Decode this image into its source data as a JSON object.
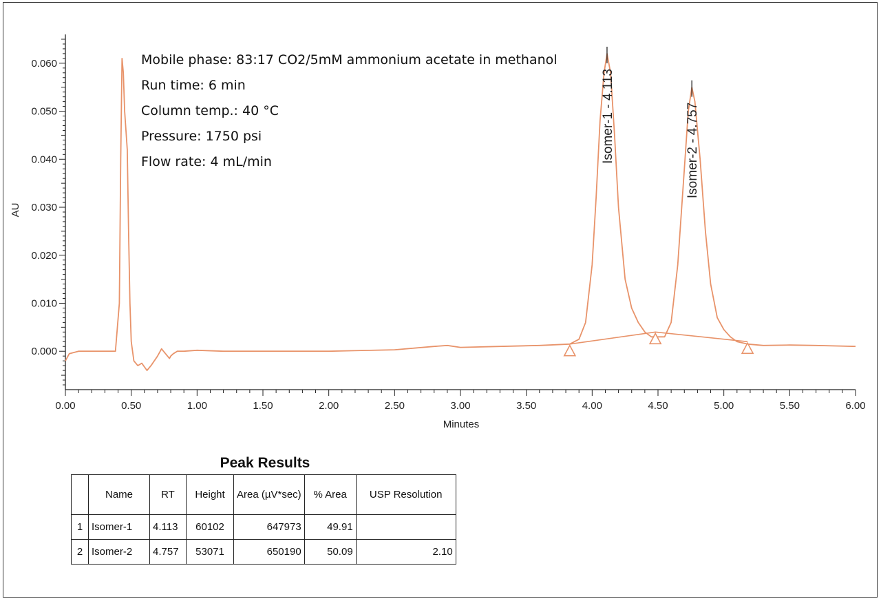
{
  "conditions": [
    "Mobile phase:  83:17 CO2/5mM ammonium acetate in methanol",
    "Run time: 6 min",
    "Column temp.: 40 °C",
    "Pressure: 1750 psi",
    "Flow rate: 4 mL/min"
  ],
  "chart_data": {
    "type": "line",
    "title": "",
    "xlabel": "Minutes",
    "ylabel": "AU",
    "xlim": [
      0.0,
      6.0
    ],
    "ylim": [
      -0.008,
      0.066
    ],
    "x_ticks": [
      "0.00",
      "0.50",
      "1.00",
      "1.50",
      "2.00",
      "2.50",
      "3.00",
      "3.50",
      "4.00",
      "4.50",
      "5.00",
      "5.50",
      "6.00"
    ],
    "y_ticks": [
      "0.000",
      "0.010",
      "0.020",
      "0.030",
      "0.040",
      "0.050",
      "0.060"
    ],
    "grid": false,
    "line_color": "#e8936a",
    "series": [
      {
        "x": [
          0.0,
          0.03,
          0.1,
          0.2,
          0.3,
          0.38,
          0.41,
          0.42,
          0.43,
          0.44,
          0.45,
          0.46,
          0.47,
          0.48,
          0.49,
          0.5,
          0.52,
          0.55,
          0.58,
          0.62,
          0.65,
          0.7,
          0.73,
          0.76,
          0.79,
          0.8,
          0.82,
          0.85,
          0.9,
          1.0,
          1.2,
          1.5,
          2.0,
          2.5,
          2.8,
          2.9,
          3.0,
          3.3,
          3.6,
          3.83,
          3.9,
          3.95,
          4.0,
          4.03,
          4.06,
          4.09,
          4.113,
          4.14,
          4.17,
          4.2,
          4.25,
          4.3,
          4.35,
          4.4,
          4.45,
          4.5,
          4.55,
          4.6,
          4.65,
          4.7,
          4.73,
          4.757,
          4.78,
          4.82,
          4.86,
          4.9,
          4.95,
          5.0,
          5.05,
          5.1,
          5.18,
          5.3,
          5.5,
          5.7,
          5.85,
          6.0
        ],
        "y": [
          -0.002,
          -0.0005,
          0.0,
          0.0,
          0.0,
          0.0,
          0.01,
          0.04,
          0.061,
          0.058,
          0.05,
          0.046,
          0.042,
          0.025,
          0.01,
          0.002,
          -0.002,
          -0.003,
          -0.0025,
          -0.004,
          -0.003,
          -0.001,
          0.0005,
          -0.0005,
          -0.0015,
          -0.001,
          -0.0005,
          0.0,
          0.0,
          0.0002,
          0.0,
          0.0,
          0.0,
          0.0003,
          0.001,
          0.0012,
          0.0008,
          0.001,
          0.0012,
          0.0015,
          0.0025,
          0.006,
          0.018,
          0.032,
          0.048,
          0.058,
          0.062,
          0.058,
          0.045,
          0.03,
          0.015,
          0.009,
          0.006,
          0.004,
          0.003,
          0.003,
          0.003,
          0.006,
          0.018,
          0.038,
          0.05,
          0.055,
          0.052,
          0.04,
          0.025,
          0.014,
          0.007,
          0.0045,
          0.003,
          0.002,
          0.0015,
          0.0012,
          0.0013,
          0.0012,
          0.0011,
          0.001
        ]
      }
    ],
    "baseline": {
      "x": [
        3.83,
        4.48,
        5.18
      ],
      "y": [
        0.0015,
        0.004,
        0.002
      ]
    },
    "integration_marks": [
      {
        "x": 3.83,
        "y": 0.0015
      },
      {
        "x": 4.48,
        "y": 0.004
      },
      {
        "x": 5.18,
        "y": 0.002
      }
    ],
    "peak_markers": [
      {
        "x": 4.113,
        "y": 0.062,
        "label": "Isomer-1 - 4.113"
      },
      {
        "x": 4.757,
        "y": 0.055,
        "label": "Isomer-2 - 4.757"
      }
    ]
  },
  "table": {
    "title": "Peak Results",
    "headers": [
      "",
      "Name",
      "RT",
      "Height",
      "Area (µV*sec)",
      "% Area",
      "USP Resolution"
    ],
    "rows": [
      [
        "1",
        "Isomer-1",
        "4.113",
        "60102",
        "647973",
        "49.91",
        ""
      ],
      [
        "2",
        "Isomer-2",
        "4.757",
        "53071",
        "650190",
        "50.09",
        "2.10"
      ]
    ]
  }
}
